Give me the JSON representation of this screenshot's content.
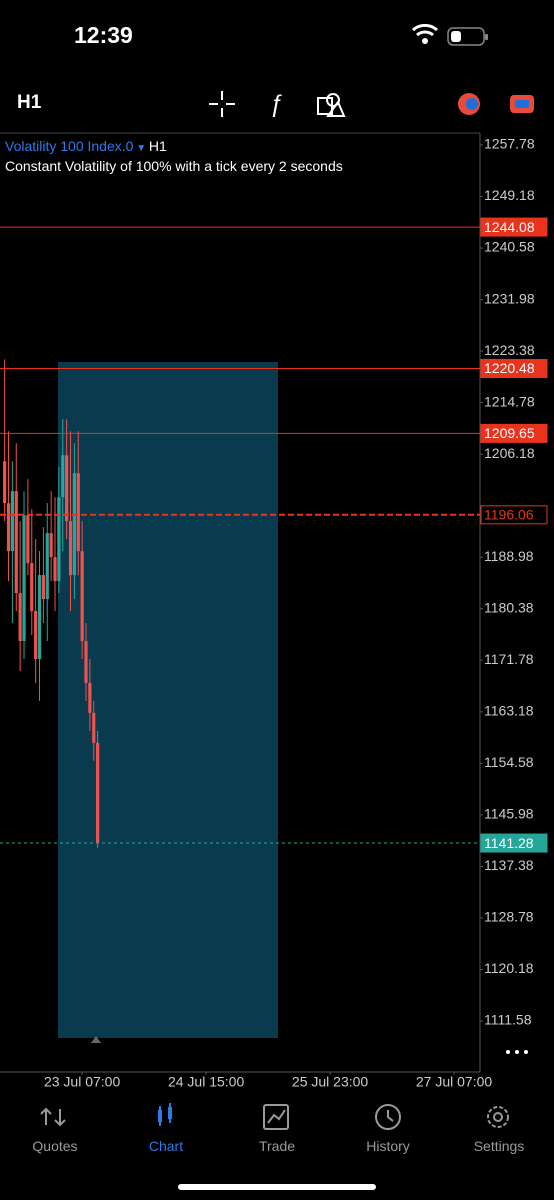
{
  "status_bar": {
    "time": "12:39"
  },
  "toolbar": {
    "timeframe": "H1"
  },
  "chart_data": {
    "type": "candlestick",
    "title": "Volatility 100 Index.0",
    "timeframe": "H1",
    "subtitle": "Constant Volatility of 100% with a tick every 2 seconds",
    "x": [
      -20,
      -19,
      -18,
      -17,
      -16,
      -15,
      -14,
      -13,
      -12,
      -11,
      -10,
      -9,
      -8,
      -7,
      -6,
      -5,
      -4,
      -3,
      -2,
      -1,
      0,
      1,
      2,
      3,
      4
    ],
    "open": [
      1205,
      1198,
      1190,
      1200,
      1183,
      1175,
      1196,
      1188,
      1180,
      1172,
      1186,
      1182,
      1193,
      1189,
      1185,
      1199,
      1206,
      1195,
      1186,
      1203,
      1190,
      1175,
      1168,
      1163,
      1158
    ],
    "high": [
      1222,
      1210,
      1205,
      1208,
      1195,
      1200,
      1202,
      1197,
      1192,
      1190,
      1194,
      1198,
      1200,
      1199,
      1204,
      1212,
      1212,
      1210,
      1208,
      1210,
      1195,
      1178,
      1172,
      1165,
      1160
    ],
    "low": [
      1195,
      1185,
      1178,
      1180,
      1170,
      1172,
      1186,
      1176,
      1168,
      1165,
      1178,
      1175,
      1185,
      1180,
      1183,
      1190,
      1192,
      1180,
      1182,
      1186,
      1172,
      1165,
      1160,
      1155,
      1140.5
    ],
    "close": [
      1198,
      1190,
      1200,
      1183,
      1175,
      1196,
      1188,
      1180,
      1172,
      1186,
      1182,
      1193,
      1189,
      1185,
      1199,
      1206,
      1195,
      1186,
      1203,
      1190,
      1175,
      1168,
      1163,
      1158,
      1141.28
    ],
    "up_color": "#26a69a",
    "down_color": "#ef5350",
    "xlim": [
      -21.2,
      102.7
    ],
    "xticks": [
      {
        "value": 0,
        "label": "23 Jul 07:00"
      },
      {
        "value": 32,
        "label": "24 Jul 15:00"
      },
      {
        "value": 64,
        "label": "25 Jul 23:00"
      },
      {
        "value": 96,
        "label": "27 Jul 07:00"
      }
    ],
    "ylim": [
      1103.07,
      1259.78
    ],
    "yticks": [
      1257.78,
      1249.18,
      1240.58,
      1231.98,
      1223.38,
      1214.78,
      1206.18,
      1188.98,
      1180.38,
      1171.78,
      1163.18,
      1154.58,
      1145.98,
      1137.38,
      1128.78,
      1120.18,
      1111.58
    ],
    "levels": [
      {
        "value": 1244.08,
        "style": "solid",
        "color": "#e8341c"
      },
      {
        "value": 1220.48,
        "style": "solid",
        "color": "#e8341c"
      },
      {
        "value": 1209.65,
        "style": "solid",
        "color": "#e8341c"
      },
      {
        "value": 1196.06,
        "style": "dashed",
        "color": "#e8341c"
      },
      {
        "value": 1141.28,
        "style": "dotted",
        "color": "#26a69a"
      }
    ]
  },
  "tab_bar": {
    "tabs": [
      "Quotes",
      "Chart",
      "Trade",
      "History",
      "Settings"
    ],
    "active": 1
  }
}
